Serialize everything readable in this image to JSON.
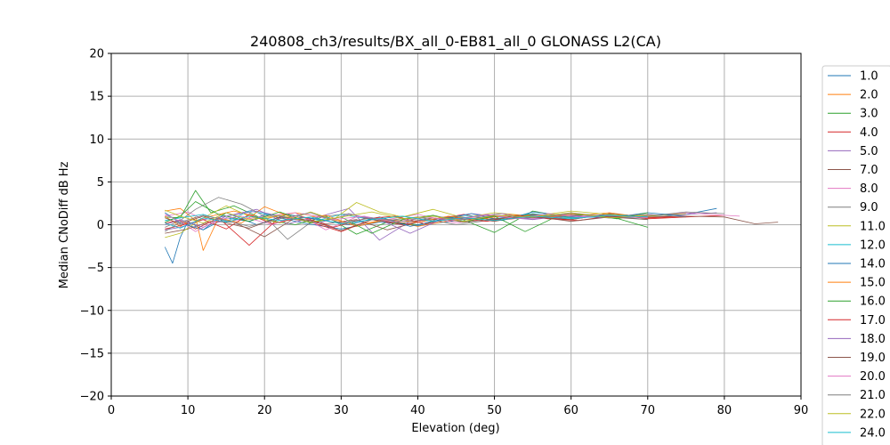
{
  "chart_data": {
    "type": "line",
    "title": "240808_ch3/results/BX_all_0-EB81_all_0 GLONASS L2(CA)",
    "xlabel": "Elevation (deg)",
    "ylabel": "Median CNoDiff dB Hz",
    "xlim": [
      0,
      90
    ],
    "ylim": [
      -20,
      20
    ],
    "xticks": [
      0,
      10,
      20,
      30,
      40,
      50,
      60,
      70,
      80,
      90
    ],
    "yticks": [
      -20,
      -15,
      -10,
      -5,
      0,
      5,
      10,
      15,
      20
    ],
    "grid": true,
    "legend_position": "right",
    "series": [
      {
        "name": "1.0",
        "color": "#1f77b4",
        "x": [
          7,
          8,
          9,
          10,
          12,
          15,
          18,
          20,
          25,
          30,
          35,
          40,
          45,
          50,
          55,
          60,
          65,
          70,
          75,
          79
        ],
        "y": [
          -2.6,
          -4.5,
          -1.5,
          0.4,
          -0.6,
          0.8,
          0.4,
          1.2,
          0.2,
          -0.5,
          0.3,
          -0.1,
          0.5,
          1.0,
          1.1,
          0.9,
          1.2,
          1.0,
          1.2,
          1.9
        ]
      },
      {
        "name": "2.0",
        "color": "#ff7f0e",
        "x": [
          7,
          9,
          11,
          13,
          16,
          20,
          24,
          28,
          32,
          36,
          40,
          45,
          50,
          55,
          60,
          65,
          70,
          75
        ],
        "y": [
          1.6,
          1.9,
          0.5,
          1.0,
          1.6,
          0.7,
          1.4,
          0.8,
          0.0,
          0.6,
          -0.2,
          0.6,
          0.9,
          1.2,
          1.0,
          1.4,
          0.8,
          1.0
        ]
      },
      {
        "name": "3.0",
        "color": "#2ca02c",
        "x": [
          7,
          9,
          11,
          13,
          16,
          20,
          24,
          28,
          32,
          36,
          40,
          45,
          50,
          55,
          60,
          65,
          70
        ],
        "y": [
          0.9,
          0.8,
          4.0,
          1.4,
          2.2,
          0.6,
          0.0,
          1.0,
          -1.1,
          0.3,
          0.0,
          0.9,
          -0.9,
          1.6,
          0.8,
          1.0,
          -0.3
        ]
      },
      {
        "name": "4.0",
        "color": "#d62728",
        "x": [
          7,
          9,
          11,
          14,
          18,
          22,
          26,
          30,
          34,
          38,
          42,
          46,
          50,
          55,
          60,
          65,
          70,
          75,
          80
        ],
        "y": [
          0.2,
          0.5,
          -0.5,
          0.8,
          -2.4,
          0.9,
          0.3,
          -0.8,
          0.6,
          0.0,
          0.6,
          1.2,
          0.5,
          0.9,
          0.6,
          1.3,
          0.7,
          0.9,
          1.1
        ]
      },
      {
        "name": "5.0",
        "color": "#9467bd",
        "x": [
          7,
          9,
          12,
          15,
          19,
          23,
          27,
          31,
          35,
          39,
          43,
          47,
          51,
          55,
          60,
          65,
          70,
          75,
          79
        ],
        "y": [
          -0.6,
          -0.3,
          0.6,
          1.0,
          1.8,
          0.1,
          0.9,
          1.9,
          -1.8,
          0.4,
          0.7,
          1.3,
          0.9,
          0.6,
          1.4,
          0.9,
          1.1,
          1.2,
          1.4
        ]
      },
      {
        "name": "7.0",
        "color": "#8c564b",
        "x": [
          7,
          10,
          13,
          16,
          20,
          24,
          28,
          32,
          36,
          40,
          45,
          50,
          55,
          60,
          65,
          70,
          75,
          80,
          84,
          87
        ],
        "y": [
          -1.0,
          -0.5,
          0.4,
          0.3,
          -1.4,
          0.8,
          0.1,
          0.6,
          -0.6,
          0.3,
          1.0,
          0.4,
          1.2,
          0.6,
          1.3,
          0.9,
          1.0,
          0.9,
          0.1,
          0.3
        ]
      },
      {
        "name": "8.0",
        "color": "#e377c2",
        "x": [
          7,
          10,
          13,
          16,
          20,
          24,
          28,
          32,
          36,
          40,
          45,
          50,
          55,
          60,
          65,
          70,
          75,
          80,
          82
        ],
        "y": [
          1.0,
          1.5,
          0.2,
          0.5,
          1.0,
          1.4,
          -0.6,
          0.9,
          0.6,
          1.2,
          0.2,
          1.0,
          0.7,
          1.3,
          0.9,
          1.0,
          1.4,
          1.1,
          1.0
        ]
      },
      {
        "name": "9.0",
        "color": "#7f7f7f",
        "x": [
          7,
          9,
          11,
          14,
          17,
          20,
          23,
          27,
          31,
          35,
          40,
          45,
          50,
          55,
          60,
          65,
          70,
          75,
          80
        ],
        "y": [
          -0.3,
          0.5,
          1.8,
          3.2,
          2.4,
          1.0,
          -1.7,
          0.9,
          1.3,
          0.4,
          0.9,
          0.0,
          0.6,
          1.1,
          0.8,
          1.2,
          1.0,
          1.5,
          1.3
        ]
      },
      {
        "name": "11.0",
        "color": "#bcbd22",
        "x": [
          7,
          9,
          12,
          15,
          18,
          22,
          26,
          29,
          32,
          35,
          38,
          42,
          46,
          50,
          55,
          60,
          65,
          70,
          75
        ],
        "y": [
          -1.5,
          -1.0,
          0.8,
          2.2,
          1.0,
          0.2,
          1.5,
          0.6,
          2.6,
          1.5,
          0.9,
          1.8,
          0.8,
          1.4,
          1.0,
          1.6,
          1.2,
          1.0,
          1.3
        ]
      },
      {
        "name": "12.0",
        "color": "#17becf",
        "x": [
          7,
          9,
          12,
          15,
          18,
          22,
          26,
          30,
          34,
          38,
          42,
          46,
          50,
          55,
          60,
          65,
          70
        ],
        "y": [
          0.5,
          0.8,
          1.2,
          0.4,
          1.6,
          1.0,
          0.3,
          1.2,
          0.6,
          1.0,
          0.4,
          1.1,
          0.7,
          1.3,
          0.8,
          1.0,
          0.6
        ]
      },
      {
        "name": "14.0",
        "color": "#1f77b4",
        "x": [
          7,
          9,
          12,
          15,
          19,
          23,
          27,
          31,
          35,
          39,
          43,
          47,
          51,
          55,
          60,
          65,
          70,
          75
        ],
        "y": [
          1.4,
          0.2,
          -0.6,
          1.4,
          0.0,
          1.2,
          0.6,
          0.0,
          0.9,
          -0.2,
          0.6,
          1.3,
          0.5,
          1.5,
          1.0,
          0.8,
          1.4,
          1.0
        ]
      },
      {
        "name": "15.0",
        "color": "#ff7f0e",
        "x": [
          7,
          9,
          11,
          12,
          14,
          17,
          20,
          24,
          28,
          32,
          36,
          40,
          44,
          48,
          52,
          56,
          60,
          65
        ],
        "y": [
          1.0,
          -0.2,
          0.9,
          -3.0,
          0.8,
          0.2,
          2.1,
          0.7,
          1.1,
          -0.2,
          0.6,
          0.3,
          1.0,
          0.6,
          1.2,
          0.8,
          1.2,
          1.0
        ]
      },
      {
        "name": "16.0",
        "color": "#2ca02c",
        "x": [
          7,
          9,
          11,
          14,
          18,
          22,
          26,
          30,
          34,
          38,
          42,
          46,
          50,
          54,
          58,
          62,
          66,
          70
        ],
        "y": [
          0.3,
          1.0,
          2.7,
          1.2,
          0.4,
          1.5,
          0.2,
          0.9,
          -1.0,
          0.6,
          1.1,
          0.3,
          1.0,
          -0.8,
          0.9,
          1.2,
          0.7,
          1.4
        ]
      },
      {
        "name": "17.0",
        "color": "#d62728",
        "x": [
          7,
          9,
          12,
          15,
          18,
          21,
          25,
          29,
          33,
          37,
          41,
          45,
          49,
          53,
          57,
          61,
          65,
          70,
          75
        ],
        "y": [
          -0.5,
          -0.1,
          0.6,
          -0.5,
          1.2,
          0.1,
          0.9,
          -0.3,
          0.7,
          1.0,
          0.1,
          0.8,
          0.4,
          1.1,
          0.7,
          0.5,
          1.0,
          0.8,
          1.0
        ]
      },
      {
        "name": "18.0",
        "color": "#9467bd",
        "x": [
          7,
          9,
          12,
          15,
          19,
          23,
          27,
          31,
          35,
          39,
          43,
          47,
          51,
          55,
          60,
          65,
          70
        ],
        "y": [
          0.0,
          0.6,
          -0.3,
          1.0,
          1.6,
          0.8,
          0.2,
          1.2,
          0.6,
          -1.0,
          0.6,
          0.9,
          1.3,
          0.6,
          1.1,
          0.8,
          1.0
        ]
      },
      {
        "name": "19.0",
        "color": "#8c564b",
        "x": [
          7,
          9,
          12,
          15,
          18,
          22,
          26,
          30,
          34,
          38,
          42,
          46,
          50,
          55,
          60,
          65,
          70
        ],
        "y": [
          0.8,
          0.1,
          1.0,
          0.2,
          -0.4,
          0.9,
          0.5,
          -0.7,
          0.6,
          0.2,
          0.8,
          0.3,
          0.7,
          1.0,
          0.4,
          0.9,
          0.6
        ]
      },
      {
        "name": "20.0",
        "color": "#e377c2",
        "x": [
          7,
          9,
          11,
          14,
          17,
          21,
          25,
          29,
          33,
          37,
          41,
          45,
          49,
          53,
          57,
          61,
          65,
          70
        ],
        "y": [
          1.2,
          0.4,
          -0.8,
          0.6,
          1.0,
          0.0,
          1.3,
          0.6,
          1.0,
          0.3,
          0.9,
          0.5,
          1.2,
          0.7,
          1.3,
          0.9,
          1.1,
          0.8
        ]
      },
      {
        "name": "21.0",
        "color": "#7f7f7f",
        "x": [
          7,
          9,
          12,
          15,
          18,
          22,
          26,
          30,
          34,
          38,
          42,
          46,
          50,
          55,
          60,
          65,
          70,
          75
        ],
        "y": [
          -0.8,
          0.3,
          1.1,
          0.5,
          -0.2,
          0.7,
          1.4,
          0.2,
          0.8,
          0.4,
          1.0,
          0.6,
          1.1,
          0.8,
          1.3,
          1.0,
          1.2,
          0.9
        ]
      },
      {
        "name": "22.0",
        "color": "#bcbd22",
        "x": [
          7,
          9,
          12,
          15,
          18,
          22,
          26,
          30,
          34,
          38,
          42,
          46,
          50,
          55,
          60,
          65,
          70
        ],
        "y": [
          1.7,
          1.0,
          0.2,
          1.4,
          0.6,
          1.1,
          0.3,
          0.9,
          1.5,
          0.7,
          1.0,
          0.4,
          1.1,
          0.9,
          1.4,
          0.8,
          1.1
        ]
      },
      {
        "name": "24.0",
        "color": "#17becf",
        "x": [
          7,
          9,
          12,
          15,
          18,
          22,
          26,
          30,
          34,
          38,
          42,
          46,
          50,
          55,
          60,
          65,
          70
        ],
        "y": [
          0.2,
          -0.4,
          0.8,
          0.3,
          1.0,
          0.5,
          0.9,
          0.1,
          0.6,
          1.0,
          0.4,
          0.8,
          0.5,
          1.0,
          0.7,
          1.1,
          0.9
        ]
      }
    ]
  }
}
